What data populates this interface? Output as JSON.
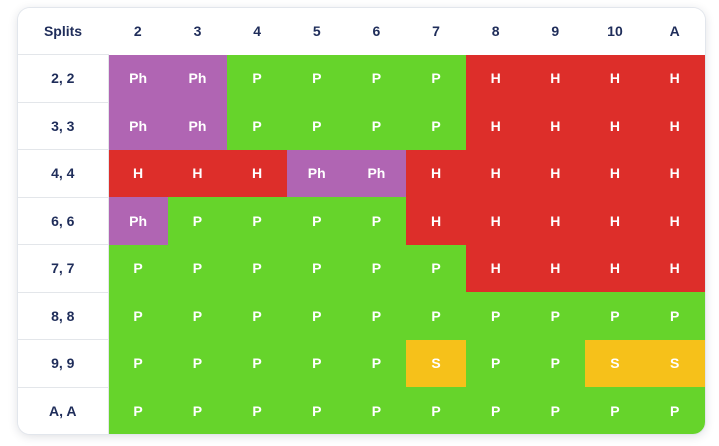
{
  "corner_label": "Splits",
  "dealer_cards": [
    "2",
    "3",
    "4",
    "5",
    "6",
    "7",
    "8",
    "9",
    "10",
    "A"
  ],
  "rows": [
    {
      "hand": "2, 2",
      "actions": [
        "Ph",
        "Ph",
        "P",
        "P",
        "P",
        "P",
        "H",
        "H",
        "H",
        "H"
      ]
    },
    {
      "hand": "3, 3",
      "actions": [
        "Ph",
        "Ph",
        "P",
        "P",
        "P",
        "P",
        "H",
        "H",
        "H",
        "H"
      ]
    },
    {
      "hand": "4, 4",
      "actions": [
        "H",
        "H",
        "H",
        "Ph",
        "Ph",
        "H",
        "H",
        "H",
        "H",
        "H"
      ]
    },
    {
      "hand": "6, 6",
      "actions": [
        "Ph",
        "P",
        "P",
        "P",
        "P",
        "H",
        "H",
        "H",
        "H",
        "H"
      ]
    },
    {
      "hand": "7, 7",
      "actions": [
        "P",
        "P",
        "P",
        "P",
        "P",
        "P",
        "H",
        "H",
        "H",
        "H"
      ]
    },
    {
      "hand": "8, 8",
      "actions": [
        "P",
        "P",
        "P",
        "P",
        "P",
        "P",
        "P",
        "P",
        "P",
        "P"
      ]
    },
    {
      "hand": "9, 9",
      "actions": [
        "P",
        "P",
        "P",
        "P",
        "P",
        "S",
        "P",
        "P",
        "S",
        "S"
      ]
    },
    {
      "hand": "A, A",
      "actions": [
        "P",
        "P",
        "P",
        "P",
        "P",
        "P",
        "P",
        "P",
        "P",
        "P"
      ]
    }
  ],
  "colors": {
    "H": "#dd2e2a",
    "P": "#66d42b",
    "Ph": "#b065b3",
    "S": "#f6c11a",
    "header_text": "#1f2d5a"
  }
}
